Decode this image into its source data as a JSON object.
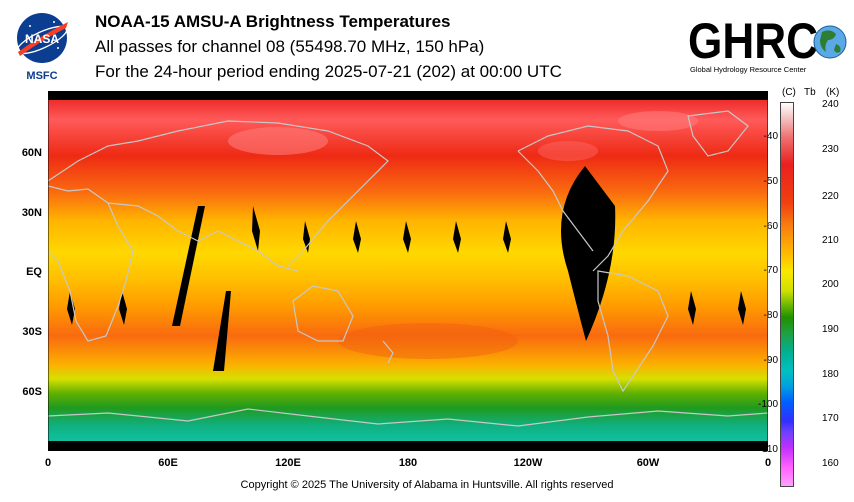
{
  "header": {
    "title": "NOAA-15 AMSU-A Brightness Temperatures",
    "line1": "All passes for channel 08 (55498.70 MHz, 150 hPa)",
    "line2": "For the 24-hour period ending 2025-07-21 (202) at 00:00 UTC"
  },
  "logos": {
    "nasa_text": "NASA",
    "msfc": "MSFC",
    "ghrc_text": "GHRC",
    "ghrc_caption": "Global Hydrology Resource Center"
  },
  "map": {
    "lat_labels": [
      "60N",
      "30N",
      "EQ",
      "30S",
      "60S"
    ],
    "lon_labels": [
      "0",
      "60E",
      "120E",
      "180",
      "120W",
      "60W",
      "0"
    ]
  },
  "colorbar": {
    "unit_c": "(C)",
    "unit_tb": "Tb",
    "unit_k": "(K)",
    "celsius_ticks": [
      "-40",
      "-50",
      "-60",
      "-70",
      "-80",
      "-90",
      "-100",
      "-110"
    ],
    "kelvin_ticks": [
      "240",
      "230",
      "220",
      "210",
      "200",
      "190",
      "180",
      "170",
      "160"
    ]
  },
  "footer": {
    "copyright": "Copyright © 2025 The University of Alabama in Huntsville.  All rights reserved"
  }
}
